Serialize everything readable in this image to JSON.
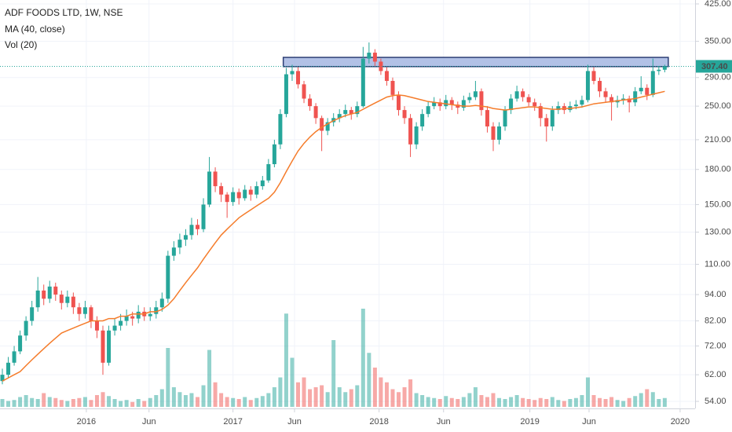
{
  "chart_data": {
    "type": "candlestick",
    "title": "ADF FOODS LTD, 1W, NSE",
    "indicators": [
      "MA (40, close)",
      "Vol (20)"
    ],
    "log_scale": true,
    "grid": true,
    "up_color": "#26a69a",
    "down_color": "#ef5350",
    "ma_color": "#f57c2b",
    "ylim": [
      54,
      425
    ],
    "yticks": [
      {
        "value": 425,
        "label": "425.00"
      },
      {
        "value": 350,
        "label": "350.00"
      },
      {
        "value": 290,
        "label": "290.00"
      },
      {
        "value": 250,
        "label": "250.00"
      },
      {
        "value": 210,
        "label": "210.00"
      },
      {
        "value": 180,
        "label": "180.00"
      },
      {
        "value": 150,
        "label": "150.00"
      },
      {
        "value": 130,
        "label": "130.00"
      },
      {
        "value": 110,
        "label": "110.00"
      },
      {
        "value": 94,
        "label": "94.00"
      },
      {
        "value": 82,
        "label": "82.00"
      },
      {
        "value": 72,
        "label": "72.00"
      },
      {
        "value": 62,
        "label": "62.00"
      },
      {
        "value": 54,
        "label": "54.00"
      }
    ],
    "last_price": {
      "value": 307.4,
      "label": "307.40"
    },
    "xticks": [
      {
        "value": 14.2,
        "label": "2016"
      },
      {
        "value": 24.8,
        "label": "Jun"
      },
      {
        "value": 39.0,
        "label": "2017"
      },
      {
        "value": 49.4,
        "label": "Jun"
      },
      {
        "value": 63.7,
        "label": "2018"
      },
      {
        "value": 74.6,
        "label": "Jun"
      },
      {
        "value": 89.2,
        "label": "2019"
      },
      {
        "value": 99.2,
        "label": "Jun"
      },
      {
        "value": 114.6,
        "label": "2020"
      }
    ],
    "range_box": {
      "from": 47.5,
      "to": 112.6,
      "low": 307,
      "high": 322
    },
    "candles": [
      [
        60,
        64,
        59,
        62
      ],
      [
        62,
        68,
        61,
        66
      ],
      [
        66,
        72,
        65,
        70
      ],
      [
        70,
        78,
        69,
        76
      ],
      [
        76,
        84,
        74,
        82
      ],
      [
        82,
        91,
        80,
        88
      ],
      [
        88,
        103,
        86,
        96
      ],
      [
        96,
        99,
        89,
        92
      ],
      [
        92,
        101,
        90,
        98
      ],
      [
        98,
        100,
        91,
        94
      ],
      [
        94,
        96,
        87,
        90
      ],
      [
        90,
        96,
        88,
        93
      ],
      [
        93,
        95,
        85,
        88
      ],
      [
        88,
        90,
        82,
        85
      ],
      [
        85,
        91,
        83,
        88
      ],
      [
        88,
        89,
        79,
        82
      ],
      [
        82,
        84,
        75,
        78
      ],
      [
        78,
        80,
        62,
        66
      ],
      [
        66,
        80,
        65,
        78
      ],
      [
        78,
        83,
        76,
        80
      ],
      [
        80,
        85,
        78,
        82
      ],
      [
        82,
        87,
        80,
        84
      ],
      [
        84,
        86,
        80,
        83
      ],
      [
        83,
        89,
        81,
        86
      ],
      [
        86,
        88,
        82,
        84
      ],
      [
        84,
        88,
        82,
        85
      ],
      [
        85,
        91,
        83,
        88
      ],
      [
        88,
        95,
        86,
        92
      ],
      [
        92,
        118,
        90,
        115
      ],
      [
        115,
        124,
        112,
        120
      ],
      [
        120,
        129,
        116,
        125
      ],
      [
        125,
        132,
        121,
        128
      ],
      [
        128,
        140,
        125,
        135
      ],
      [
        135,
        139,
        128,
        132
      ],
      [
        132,
        155,
        130,
        150
      ],
      [
        150,
        192,
        148,
        178
      ],
      [
        178,
        182,
        160,
        165
      ],
      [
        165,
        168,
        152,
        158
      ],
      [
        158,
        160,
        140,
        152
      ],
      [
        152,
        164,
        149,
        160
      ],
      [
        160,
        163,
        150,
        155
      ],
      [
        155,
        166,
        153,
        162
      ],
      [
        162,
        165,
        153,
        158
      ],
      [
        158,
        169,
        155,
        165
      ],
      [
        165,
        174,
        162,
        170
      ],
      [
        170,
        190,
        168,
        185
      ],
      [
        185,
        210,
        182,
        205
      ],
      [
        205,
        246,
        200,
        240
      ],
      [
        240,
        305,
        236,
        295
      ],
      [
        295,
        310,
        285,
        300
      ],
      [
        300,
        306,
        274,
        280
      ],
      [
        280,
        285,
        254,
        260
      ],
      [
        260,
        266,
        244,
        250
      ],
      [
        250,
        254,
        228,
        235
      ],
      [
        235,
        238,
        198,
        220
      ],
      [
        220,
        235,
        215,
        230
      ],
      [
        230,
        241,
        225,
        235
      ],
      [
        235,
        246,
        230,
        240
      ],
      [
        240,
        252,
        236,
        245
      ],
      [
        245,
        249,
        233,
        240
      ],
      [
        240,
        256,
        236,
        250
      ],
      [
        250,
        340,
        248,
        320
      ],
      [
        320,
        348,
        312,
        330
      ],
      [
        330,
        336,
        308,
        315
      ],
      [
        315,
        320,
        294,
        300
      ],
      [
        300,
        306,
        278,
        285
      ],
      [
        285,
        290,
        258,
        265
      ],
      [
        265,
        270,
        238,
        245
      ],
      [
        245,
        250,
        228,
        235
      ],
      [
        235,
        240,
        192,
        205
      ],
      [
        205,
        230,
        200,
        225
      ],
      [
        225,
        246,
        220,
        240
      ],
      [
        240,
        256,
        236,
        250
      ],
      [
        250,
        262,
        246,
        255
      ],
      [
        255,
        260,
        244,
        250
      ],
      [
        250,
        265,
        246,
        258
      ],
      [
        258,
        262,
        245,
        252
      ],
      [
        252,
        256,
        240,
        248
      ],
      [
        248,
        264,
        244,
        258
      ],
      [
        258,
        268,
        254,
        262
      ],
      [
        262,
        285,
        258,
        270
      ],
      [
        270,
        274,
        238,
        245
      ],
      [
        245,
        250,
        218,
        225
      ],
      [
        225,
        230,
        198,
        210
      ],
      [
        210,
        230,
        205,
        225
      ],
      [
        225,
        250,
        220,
        245
      ],
      [
        245,
        266,
        240,
        260
      ],
      [
        260,
        278,
        256,
        270
      ],
      [
        270,
        274,
        256,
        262
      ],
      [
        262,
        266,
        250,
        255
      ],
      [
        255,
        260,
        244,
        250
      ],
      [
        250,
        254,
        225,
        235
      ],
      [
        235,
        240,
        208,
        225
      ],
      [
        225,
        250,
        220,
        245
      ],
      [
        245,
        256,
        240,
        250
      ],
      [
        250,
        254,
        240,
        245
      ],
      [
        245,
        256,
        242,
        250
      ],
      [
        250,
        258,
        246,
        252
      ],
      [
        252,
        264,
        248,
        258
      ],
      [
        258,
        310,
        255,
        300
      ],
      [
        300,
        306,
        280,
        285
      ],
      [
        285,
        290,
        262,
        270
      ],
      [
        270,
        275,
        255,
        262
      ],
      [
        262,
        266,
        232,
        255
      ],
      [
        255,
        264,
        248,
        258
      ],
      [
        258,
        266,
        252,
        260
      ],
      [
        260,
        264,
        242,
        255
      ],
      [
        255,
        276,
        250,
        270
      ],
      [
        270,
        292,
        266,
        275
      ],
      [
        275,
        280,
        258,
        265
      ],
      [
        265,
        320,
        262,
        300
      ],
      [
        300,
        308,
        294,
        302
      ],
      [
        302,
        310,
        298,
        307.4
      ]
    ],
    "ma": [
      60,
      61,
      62,
      63,
      65,
      67,
      69,
      71,
      73,
      75,
      77,
      78,
      79,
      80,
      81,
      82,
      82,
      82,
      83,
      83,
      84,
      84,
      85,
      85,
      85,
      86,
      86,
      87,
      89,
      92,
      96,
      100,
      104,
      108,
      113,
      118,
      123,
      128,
      132,
      136,
      140,
      143,
      146,
      149,
      152,
      155,
      160,
      168,
      178,
      188,
      198,
      206,
      213,
      219,
      224,
      228,
      232,
      235,
      238,
      240,
      242,
      246,
      250,
      254,
      258,
      262,
      264,
      265,
      264,
      262,
      260,
      258,
      256,
      255,
      254,
      253,
      252,
      251,
      250,
      250,
      251,
      250,
      249,
      247,
      246,
      245,
      246,
      247,
      248,
      249,
      249,
      248,
      247,
      246,
      246,
      247,
      247,
      248,
      249,
      251,
      253,
      254,
      255,
      256,
      257,
      258,
      259,
      260,
      262,
      264,
      266,
      268,
      270
    ],
    "volume_lim": [
      0,
      100
    ],
    "volume": [
      8,
      6,
      7,
      10,
      12,
      9,
      8,
      14,
      10,
      9,
      7,
      6,
      8,
      9,
      10,
      7,
      12,
      15,
      11,
      8,
      6,
      7,
      5,
      8,
      6,
      9,
      12,
      18,
      60,
      20,
      15,
      12,
      14,
      10,
      22,
      58,
      25,
      14,
      10,
      9,
      8,
      10,
      7,
      9,
      11,
      14,
      20,
      30,
      95,
      50,
      25,
      30,
      18,
      20,
      22,
      15,
      68,
      20,
      15,
      18,
      22,
      100,
      55,
      40,
      30,
      25,
      18,
      15,
      20,
      28,
      14,
      12,
      10,
      9,
      8,
      11,
      9,
      8,
      10,
      14,
      20,
      12,
      10,
      14,
      9,
      8,
      10,
      12,
      9,
      8,
      7,
      9,
      8,
      10,
      7,
      6,
      8,
      9,
      12,
      30,
      12,
      9,
      8,
      10,
      7,
      6,
      9,
      11,
      14,
      18,
      15,
      8,
      9
    ]
  }
}
